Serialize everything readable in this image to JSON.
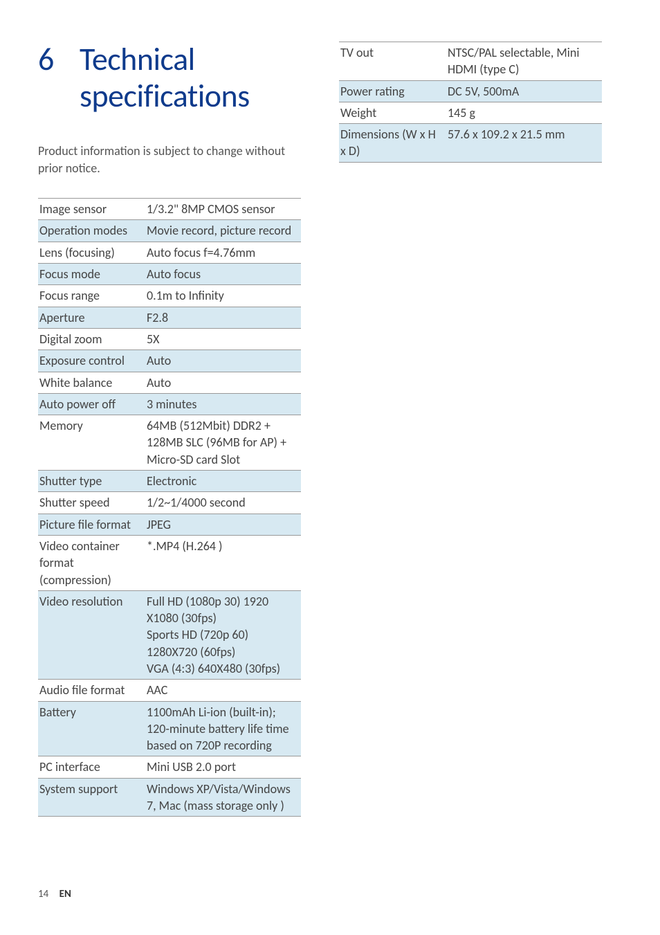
{
  "heading": {
    "number": "6",
    "title_line1": "Technical",
    "title_line2": "specifications"
  },
  "intro": "Product information is subject to change without prior notice.",
  "table_left": [
    {
      "key": "Image sensor",
      "value": "1/3.2\" 8MP CMOS sensor",
      "shaded": false
    },
    {
      "key": "Operation modes",
      "value": "Movie record, picture record",
      "shaded": true
    },
    {
      "key": "Lens (focusing)",
      "value": "Auto focus f=4.76mm",
      "shaded": false
    },
    {
      "key": "Focus mode",
      "value": "Auto focus",
      "shaded": true
    },
    {
      "key": "Focus range",
      "value": "0.1m to Infinity",
      "shaded": false
    },
    {
      "key": "Aperture",
      "value": "F2.8",
      "shaded": true
    },
    {
      "key": "Digital zoom",
      "value": "5X",
      "shaded": false
    },
    {
      "key": "Exposure control",
      "value": "Auto",
      "shaded": true
    },
    {
      "key": "White balance",
      "value": "Auto",
      "shaded": false
    },
    {
      "key": "Auto power off",
      "value": "3 minutes",
      "shaded": true
    },
    {
      "key": "Memory",
      "value": "64MB (512Mbit) DDR2 + 128MB SLC (96MB for AP) + Micro-SD card Slot",
      "shaded": false
    },
    {
      "key": "Shutter type",
      "value": "Electronic",
      "shaded": true
    },
    {
      "key": "Shutter speed",
      "value": "1/2~1/4000 second",
      "shaded": false
    },
    {
      "key": "Picture file format",
      "value": "JPEG",
      "shaded": true
    },
    {
      "key": "Video container format (compression)",
      "value": "*.MP4 (H.264 )",
      "shaded": false
    },
    {
      "key": "Video resolution",
      "value": "Full HD (1080p 30) 1920 X1080 (30fps)\nSports HD (720p 60) 1280X720 (60fps)\nVGA (4:3) 640X480 (30fps)",
      "shaded": true
    },
    {
      "key": "Audio file format",
      "value": "AAC",
      "shaded": false
    },
    {
      "key": "Battery",
      "value": "1100mAh Li-ion (built-in); 120-minute battery life time based on 720P recording",
      "shaded": true
    },
    {
      "key": "PC interface",
      "value": "Mini USB 2.0 port",
      "shaded": false
    },
    {
      "key": "System support",
      "value": "Windows XP/Vista/Windows 7, Mac (mass storage only )",
      "shaded": true
    }
  ],
  "table_right": [
    {
      "key": "TV out",
      "value": "NTSC/PAL selectable, Mini HDMI (type C)",
      "shaded": false
    },
    {
      "key": "Power rating",
      "value": "DC 5V, 500mA",
      "shaded": true
    },
    {
      "key": "Weight",
      "value": "145 g",
      "shaded": false
    },
    {
      "key": "Dimensions (W x H x D)",
      "value": "57.6 x 109.2 x 21.5 mm",
      "shaded": true
    }
  ],
  "footer": {
    "page": "14",
    "lang": "EN"
  },
  "colors": {
    "brand": "#0f3b8c",
    "shade": "#d7e9f2",
    "rule": "#999999",
    "text": "#444444"
  },
  "typography": {
    "heading_size_pt": 34,
    "body_size_pt": 14,
    "font_family": "Gill Sans"
  }
}
